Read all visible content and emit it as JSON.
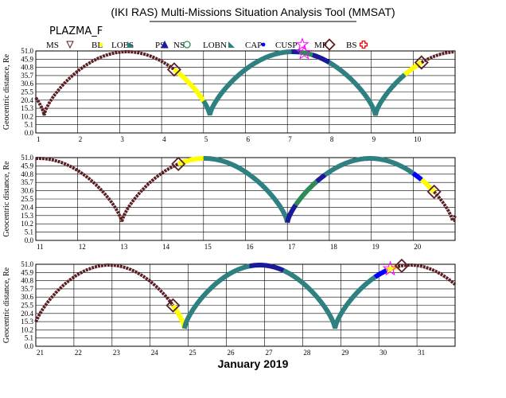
{
  "title": "(IKI RAS) Multi-Missions Situation Analysis Tool (MMSAT)",
  "spacecraft": "PLAZMA_F",
  "colors": {
    "background": "#ffffff",
    "orbit_brown": "#5b1f24",
    "teal": "#2f8080",
    "yellow": "#ffff00",
    "navy": "#1a1a9a",
    "blue": "#0000ff",
    "green": "#2e8b57",
    "magenta": "#ff00ff",
    "red": "#ff0000"
  },
  "legend": [
    {
      "label": "MS",
      "symbol": "tri-down",
      "color": "#5b1f24"
    },
    {
      "label": "BL",
      "symbol": "dot",
      "color": "#ffff00"
    },
    {
      "label": "LOBS",
      "symbol": "flag",
      "color": "#2f8080"
    },
    {
      "label": "PS",
      "symbol": "tri-up",
      "color": "#1a1a9a"
    },
    {
      "label": "NS",
      "symbol": "circle",
      "color": "#2e8b57"
    },
    {
      "label": "LOBN",
      "symbol": "flag",
      "color": "#2f8080"
    },
    {
      "label": "CAP",
      "symbol": "dot",
      "color": "#0000ff"
    },
    {
      "label": "CUSP",
      "symbol": "star",
      "color": "#ff00ff"
    },
    {
      "label": "MP",
      "symbol": "diamond",
      "color": "#5b1f24"
    },
    {
      "label": "BS",
      "symbol": "cross",
      "color": "#ff0000"
    }
  ],
  "chart_data": [
    {
      "type": "line",
      "panel": 1,
      "ylabel": "Geocentric distance, Re",
      "xlim": [
        1,
        11
      ],
      "ylim": [
        0,
        51
      ],
      "x_ticks": [
        "1",
        "2",
        "3",
        "4",
        "5",
        "6",
        "7",
        "8",
        "9",
        "10"
      ],
      "y_ticks": [
        "0.0",
        "5.1",
        "10.2",
        "15.3",
        "20.4",
        "25.5",
        "30.6",
        "35.7",
        "40.8",
        "45.9",
        "51.0"
      ],
      "segments": [
        {
          "region": "MS",
          "color": "#5b1f24",
          "from": 1.0,
          "to": 4.3
        },
        {
          "region": "BL",
          "color": "#ffff00",
          "from": 4.3,
          "to": 5.0
        },
        {
          "region": "LOBN",
          "color": "#2f8080",
          "from": 5.0,
          "to": 7.1
        },
        {
          "region": "PS",
          "color": "#1a1a9a",
          "from": 7.1,
          "to": 7.3
        },
        {
          "region": "NS",
          "color": "#2e8b57",
          "from": 7.3,
          "to": 7.6
        },
        {
          "region": "PS",
          "color": "#1a1a9a",
          "from": 7.6,
          "to": 8.0
        },
        {
          "region": "LOBS",
          "color": "#2f8080",
          "from": 8.0,
          "to": 9.8
        },
        {
          "region": "BL",
          "color": "#ffff00",
          "from": 9.8,
          "to": 10.2
        },
        {
          "region": "MS",
          "color": "#5b1f24",
          "from": 10.2,
          "to": 11.0
        }
      ],
      "crossings": [
        {
          "type": "MP",
          "x": 4.3
        },
        {
          "type": "CUSP",
          "x": 7.4
        },
        {
          "type": "MP",
          "x": 10.2
        }
      ]
    },
    {
      "type": "line",
      "panel": 2,
      "ylabel": "Geocentric distance, Re",
      "xlim": [
        11,
        21
      ],
      "ylim": [
        0,
        51
      ],
      "x_ticks": [
        "11",
        "12",
        "13",
        "14",
        "15",
        "16",
        "17",
        "18",
        "19",
        "20"
      ],
      "y_ticks": [
        "0.0",
        "5.1",
        "10.2",
        "15.3",
        "20.4",
        "25.5",
        "30.6",
        "35.7",
        "40.8",
        "45.9",
        "51.0"
      ],
      "segments": [
        {
          "region": "MS",
          "color": "#5b1f24",
          "from": 11.0,
          "to": 14.4
        },
        {
          "region": "BL",
          "color": "#ffff00",
          "from": 14.4,
          "to": 15.0
        },
        {
          "region": "LOBN",
          "color": "#2f8080",
          "from": 15.0,
          "to": 17.0
        },
        {
          "region": "PS",
          "color": "#1a1a9a",
          "from": 17.0,
          "to": 17.2
        },
        {
          "region": "NS",
          "color": "#2e8b57",
          "from": 17.2,
          "to": 17.7
        },
        {
          "region": "PS",
          "color": "#1a1a9a",
          "from": 17.7,
          "to": 17.9
        },
        {
          "region": "LOBS",
          "color": "#2f8080",
          "from": 17.9,
          "to": 20.0
        },
        {
          "region": "CAP",
          "color": "#0000ff",
          "from": 20.0,
          "to": 20.2
        },
        {
          "region": "BL",
          "color": "#ffff00",
          "from": 20.2,
          "to": 20.5
        },
        {
          "region": "MS",
          "color": "#5b1f24",
          "from": 20.5,
          "to": 21.0
        }
      ],
      "crossings": [
        {
          "type": "MP",
          "x": 14.4
        },
        {
          "type": "MP",
          "x": 20.5
        }
      ]
    },
    {
      "type": "line",
      "panel": 3,
      "ylabel": "Geocentric distance, Re",
      "xlabel": "January 2019",
      "xlim": [
        21,
        32
      ],
      "ylim": [
        0,
        51
      ],
      "x_ticks": [
        "21",
        "22",
        "23",
        "24",
        "25",
        "26",
        "27",
        "28",
        "29",
        "30",
        "31"
      ],
      "y_ticks": [
        "0.0",
        "5.1",
        "10.2",
        "15.3",
        "20.4",
        "25.5",
        "30.6",
        "35.7",
        "40.8",
        "45.9",
        "51.0"
      ],
      "segments": [
        {
          "region": "MS",
          "color": "#5b1f24",
          "from": 21.0,
          "to": 24.6
        },
        {
          "region": "BL",
          "color": "#ffff00",
          "from": 24.6,
          "to": 24.9
        },
        {
          "region": "LOBN",
          "color": "#2f8080",
          "from": 24.9,
          "to": 26.6
        },
        {
          "region": "PS",
          "color": "#1a1a9a",
          "from": 26.6,
          "to": 27.5
        },
        {
          "region": "LOBS",
          "color": "#2f8080",
          "from": 27.5,
          "to": 29.9
        },
        {
          "region": "CAP",
          "color": "#0000ff",
          "from": 29.9,
          "to": 30.2
        },
        {
          "region": "BL",
          "color": "#ffff00",
          "from": 30.2,
          "to": 30.5
        },
        {
          "region": "MS",
          "color": "#5b1f24",
          "from": 30.5,
          "to": 32.0
        }
      ],
      "crossings": [
        {
          "type": "MP",
          "x": 24.6
        },
        {
          "type": "CUSP",
          "x": 30.3
        },
        {
          "type": "MP",
          "x": 30.6
        }
      ]
    }
  ]
}
